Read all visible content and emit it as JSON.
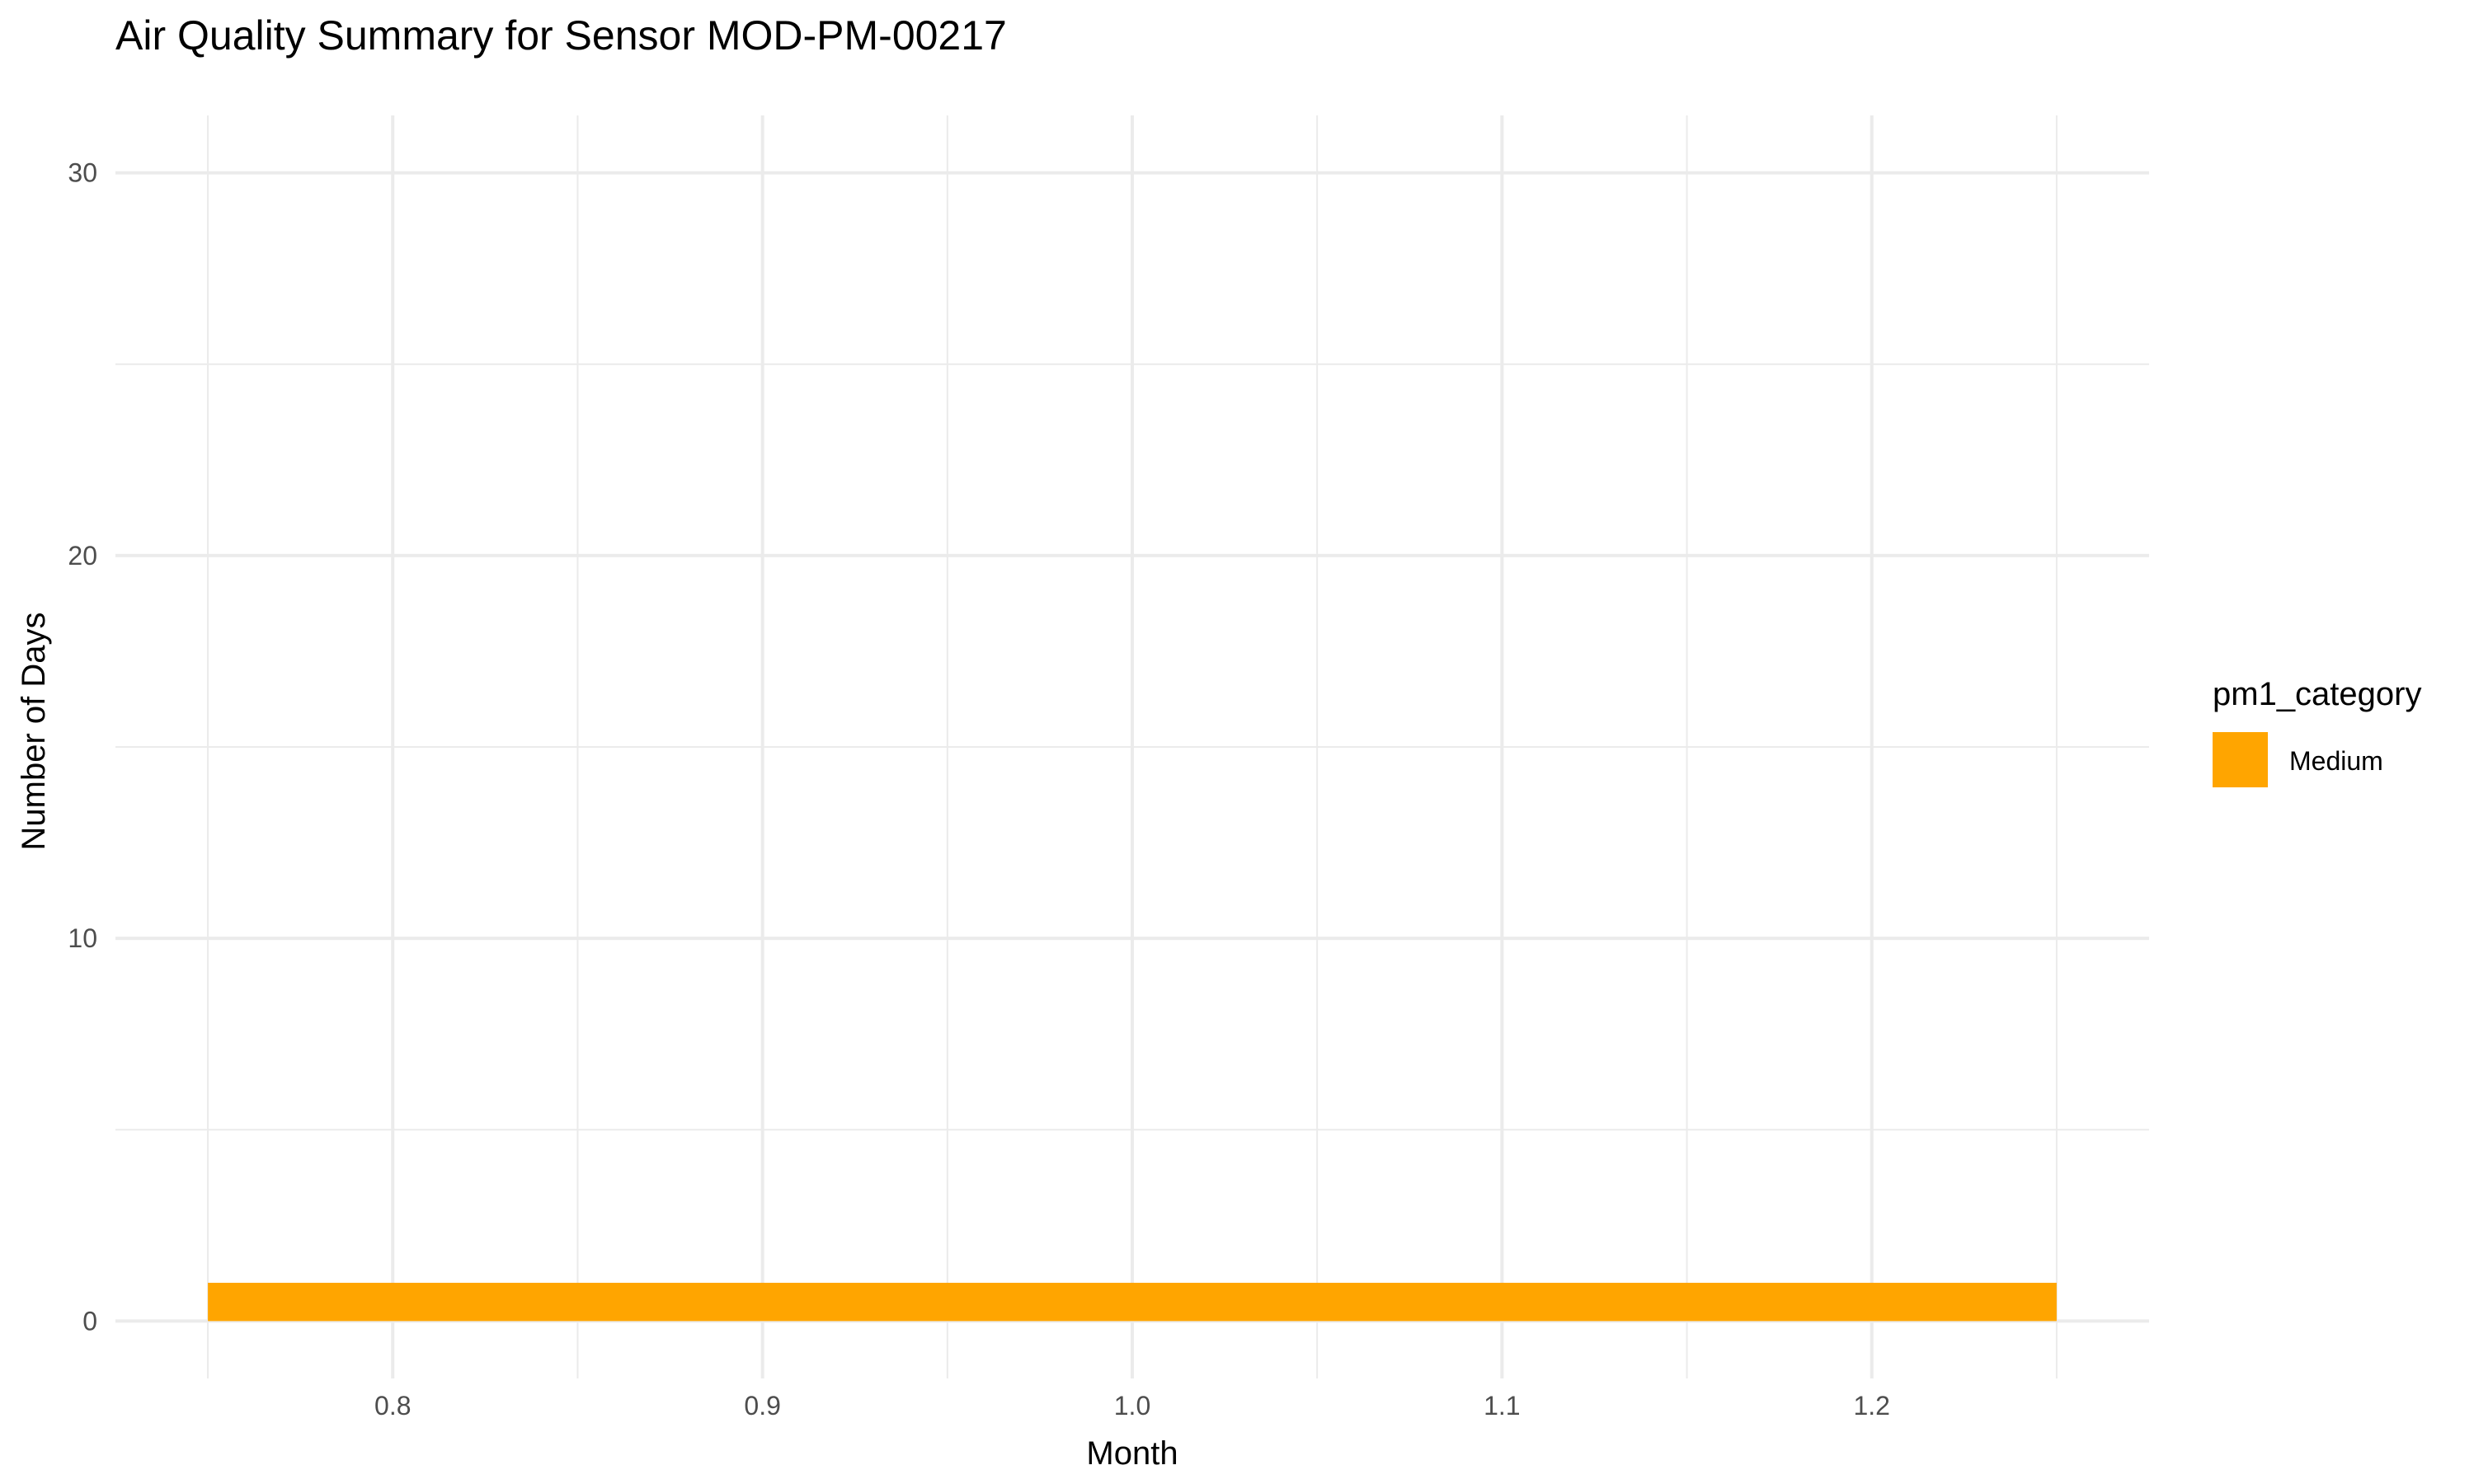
{
  "chart_data": {
    "type": "bar",
    "title": "Air Quality Summary for Sensor MOD-PM-00217",
    "xlabel": "Month",
    "ylabel": "Number of Days",
    "xlim": [
      0.725,
      1.275
    ],
    "ylim": [
      -1.5,
      31.5
    ],
    "x_ticks": [
      0.8,
      0.9,
      1.0,
      1.1,
      1.2
    ],
    "x_tick_labels": [
      "0.8",
      "0.9",
      "1.0",
      "1.1",
      "1.2"
    ],
    "x_minor_ticks": [
      0.75,
      0.85,
      0.95,
      1.05,
      1.15,
      1.25
    ],
    "y_ticks": [
      0,
      10,
      20,
      30
    ],
    "y_tick_labels": [
      "0",
      "10",
      "20",
      "30"
    ],
    "y_minor_ticks": [
      5,
      15,
      25
    ],
    "grid": true,
    "legend": {
      "title": "pm1_category",
      "position": "right"
    },
    "bar_width": 0.5,
    "series": [
      {
        "name": "Medium",
        "color": "#FFA500",
        "x": [
          1.0
        ],
        "values": [
          1
        ]
      }
    ]
  }
}
